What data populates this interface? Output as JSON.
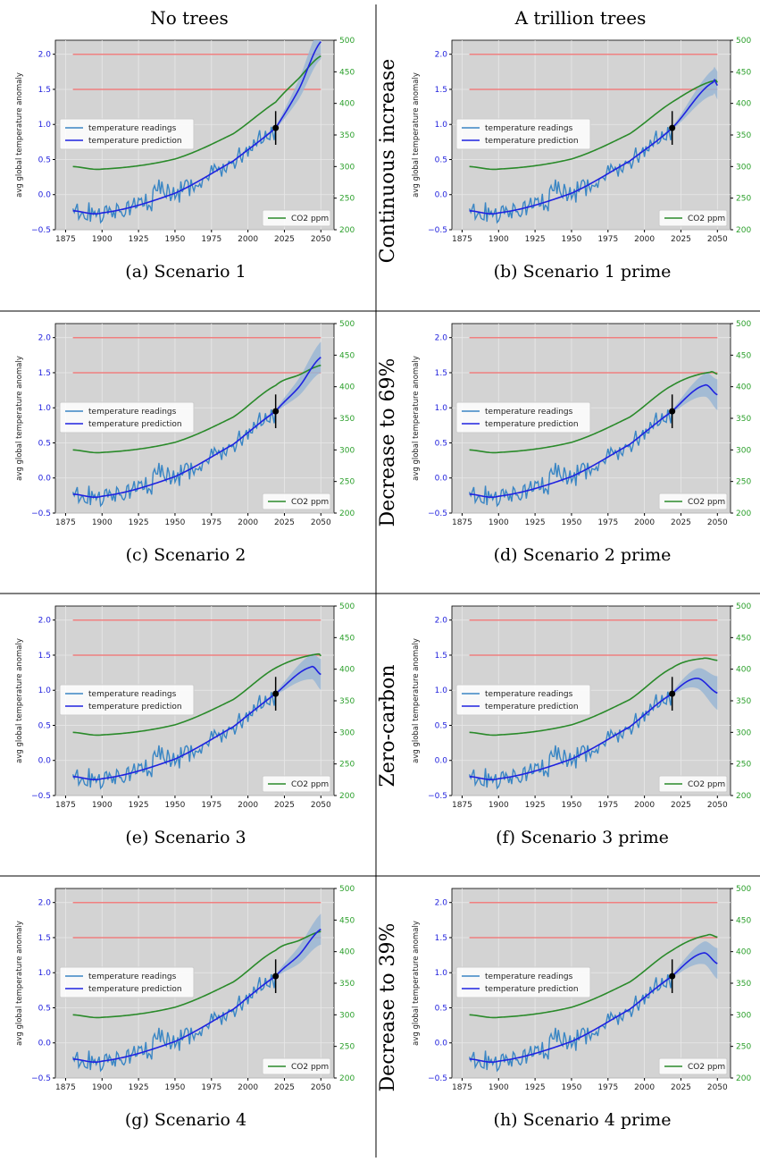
{
  "columns": [
    "No trees",
    "A trillion trees"
  ],
  "rows": [
    "Continuous increase",
    "Decrease to 69%",
    "Zero-carbon",
    "Decrease to 39%"
  ],
  "colors": {
    "background_axes": "#d3d3d3",
    "grid": "#e8e8e8",
    "readings": "#3a86c4",
    "prediction": "#1f22e0",
    "band": "#9ab6d4",
    "co2": "#2a8a2a",
    "threshold": "#f08080",
    "left_tick": "#2222dd",
    "right_tick": "#2ca02c",
    "marker": "#000000"
  },
  "legend_labels": {
    "readings": "temperature readings",
    "prediction": "temperature prediction",
    "co2": "CO2 ppm"
  },
  "ylabel_left": "avg global temperature anomaly",
  "chart_data": [
    {
      "id": "a",
      "caption": "(a) Scenario 1",
      "type": "line",
      "co2_end": 475,
      "co2_peak_year": null,
      "pred_end": 2.18,
      "pred_peak_year": null,
      "band_end": 0.25
    },
    {
      "id": "b",
      "caption": "(b) Scenario 1 prime",
      "type": "line",
      "co2_end": 433,
      "co2_peak_year": 2048,
      "pred_end": 1.6,
      "pred_peak_year": 2047,
      "band_end": 0.2
    },
    {
      "id": "c",
      "caption": "(c) Scenario 2",
      "type": "line",
      "co2_end": 434,
      "co2_peak_year": null,
      "pred_end": 1.72,
      "pred_peak_year": null,
      "band_end": 0.22
    },
    {
      "id": "d",
      "caption": "(d) Scenario 2 prime",
      "type": "line",
      "co2_end": 420,
      "co2_peak_year": 2045,
      "pred_end": 1.32,
      "pred_peak_year": 2041,
      "band_end": 0.22
    },
    {
      "id": "e",
      "caption": "(e) Scenario 3",
      "type": "line",
      "co2_end": 421,
      "co2_peak_year": 2048,
      "pred_end": 1.33,
      "pred_peak_year": 2043,
      "band_end": 0.22
    },
    {
      "id": "f",
      "caption": "(f) Scenario 3 prime",
      "type": "line",
      "co2_end": 414,
      "co2_peak_year": 2040,
      "pred_end": 1.17,
      "pred_peak_year": 2036,
      "band_end": 0.24
    },
    {
      "id": "g",
      "caption": "(g) Scenario 4",
      "type": "line",
      "co2_end": 432,
      "co2_peak_year": null,
      "pred_end": 1.62,
      "pred_peak_year": null,
      "band_end": 0.22
    },
    {
      "id": "h",
      "caption": "(h) Scenario 4 prime",
      "type": "line",
      "co2_end": 423,
      "co2_peak_year": 2043,
      "pred_end": 1.28,
      "pred_peak_year": 2040,
      "band_end": 0.22
    }
  ],
  "shared_axes": {
    "x_ticks": [
      1875,
      1900,
      1925,
      1950,
      1975,
      2000,
      2025,
      2050
    ],
    "xlim": [
      1868,
      2059
    ],
    "y_left_ticks": [
      "−0.5",
      "0.0",
      "0.5",
      "1.0",
      "1.5",
      "2.0"
    ],
    "y_left_values": [
      -0.5,
      0,
      0.5,
      1.0,
      1.5,
      2.0
    ],
    "ylim_left": [
      -0.5,
      2.2
    ],
    "y_right_ticks": [
      200,
      250,
      300,
      350,
      400,
      450,
      500
    ],
    "ylim_right": [
      200,
      500
    ],
    "thresholds": [
      1.5,
      2.0
    ],
    "threshold_range": [
      1880,
      2050
    ],
    "readings_range": [
      1880,
      2019
    ],
    "co2_start": 300,
    "co2_min": 296,
    "co2_min_year": 1900,
    "pred_start": -0.23,
    "pred_min_year": 1900,
    "pred_min": -0.26,
    "marker": {
      "year": 2019,
      "value": 0.95,
      "err": 0.24
    },
    "legend_position": [
      "center-left",
      "lower-right"
    ]
  }
}
